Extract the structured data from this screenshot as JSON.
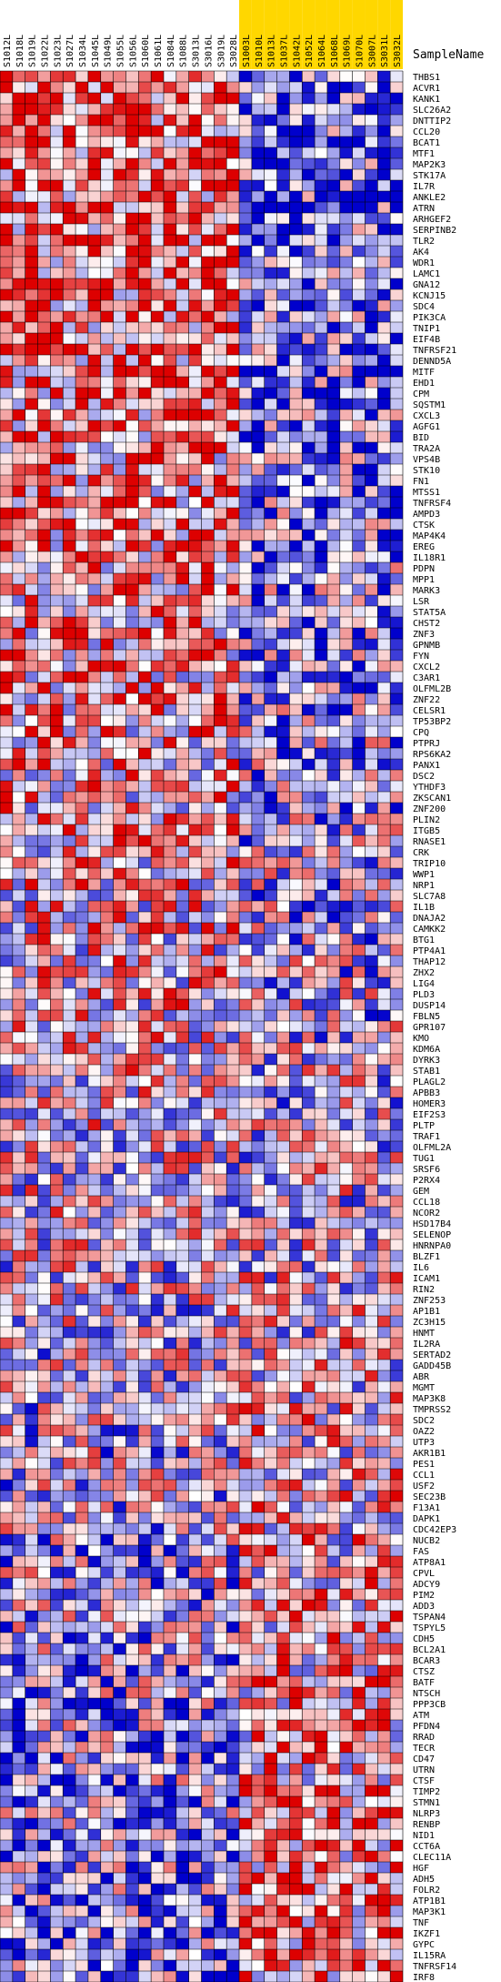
{
  "chart_data": {
    "type": "heatmap",
    "header_label": "SampleName",
    "columns": [
      "S1012L",
      "S1018L",
      "S1019L",
      "S1022L",
      "S1023L",
      "S1027L",
      "S1034L",
      "S1045L",
      "S1049L",
      "S1055L",
      "S1056L",
      "S1060L",
      "S1061L",
      "S1084L",
      "S1088L",
      "S3013L",
      "S3016L",
      "S3019L",
      "S3028L",
      "S1003L",
      "S1010L",
      "S1013L",
      "S1037L",
      "S1042L",
      "S1052L",
      "S1064L",
      "S1068L",
      "S1069L",
      "S1070L",
      "S3007L",
      "S3031L",
      "S3032L"
    ],
    "highlight_from_index": 19,
    "highlight_color": "#ffd700",
    "genes": [
      "THBS1",
      "ACVR1",
      "KANK1",
      "SLC26A2",
      "DNTTIP2",
      "CCL20",
      "BCAT1",
      "MTF1",
      "MAP2K3",
      "STK17A",
      "IL7R",
      "ANKLE2",
      "ATRN",
      "ARHGEF2",
      "SERPINB2",
      "TLR2",
      "AK4",
      "WDR1",
      "LAMC1",
      "GNA12",
      "KCNJ15",
      "SDC4",
      "PIK3CA",
      "TNIP1",
      "EIF4B",
      "TNFRSF21",
      "DENND5A",
      "MITF",
      "EHD1",
      "CPM",
      "SQSTM1",
      "CXCL3",
      "AGFG1",
      "BID",
      "TRA2A",
      "VPS4B",
      "STK10",
      "FN1",
      "MTSS1",
      "TNFRSF4",
      "AMPD3",
      "CTSK",
      "MAP4K4",
      "EREG",
      "IL18R1",
      "PDPN",
      "MPP1",
      "MARK3",
      "LSR",
      "STAT5A",
      "CHST2",
      "ZNF3",
      "GPNMB",
      "FYN",
      "CXCL2",
      "C3AR1",
      "OLFML2B",
      "ZNF22",
      "CELSR1",
      "TP53BP2",
      "CPQ",
      "PTPRJ",
      "RPS6KA2",
      "PANX1",
      "DSC2",
      "YTHDF3",
      "ZKSCAN1",
      "ZNF200",
      "PLIN2",
      "ITGB5",
      "RNASE1",
      "CRK",
      "TRIP10",
      "WWP1",
      "NRP1",
      "SLC7A8",
      "IL1B",
      "DNAJA2",
      "CAMKK2",
      "BTG1",
      "PTP4A1",
      "THAP12",
      "ZHX2",
      "LIG4",
      "PLD3",
      "DUSP14",
      "FBLN5",
      "GPR107",
      "KMO",
      "KDM6A",
      "DYRK3",
      "STAB1",
      "PLAGL2",
      "APBB3",
      "HOMER3",
      "EIF2S3",
      "PLTP",
      "TRAF1",
      "OLFML2A",
      "TUG1",
      "SRSF6",
      "P2RX4",
      "GEM",
      "CCL18",
      "NCOR2",
      "HSD17B4",
      "SELENOP",
      "HNRNPA0",
      "BLZF1",
      "IL6",
      "ICAM1",
      "RIN2",
      "ZNF253",
      "AP1B1",
      "ZC3H15",
      "HNMT",
      "IL2RA",
      "SERTAD2",
      "GADD45B",
      "ABR",
      "MGMT",
      "MAP3K8",
      "TMPRSS2",
      "SDC2",
      "OAZ2",
      "UTP3",
      "AKR1B1",
      "PES1",
      "CCL1",
      "USF2",
      "SEC23B",
      "F13A1",
      "DAPK1",
      "CDC42EP3",
      "NUCB2",
      "FAS",
      "ATP8A1",
      "CPVL",
      "ADCY9",
      "PIM2",
      "ADD3",
      "TSPAN4",
      "TSPYL5",
      "CDH5",
      "BCL2A1",
      "BCAR3",
      "CTSZ",
      "BATF",
      "NTSCH",
      "PPP3CB",
      "ATM",
      "PFDN4",
      "RRAD",
      "TECR",
      "CD47",
      "UTRN",
      "CTSF",
      "TIMP2",
      "STMN1",
      "NLRP3",
      "RENBP",
      "NID1",
      "CCT6A",
      "CLEC11A",
      "HGF",
      "ADH5",
      "FOLR2",
      "ATP1B1",
      "MAP3K1",
      "TNF",
      "IKZF1",
      "GYPC",
      "IL15RA",
      "TNFRSF14",
      "IRF8"
    ],
    "color_scale": {
      "low": "#0000cc",
      "mid_low": "#8a8ae6",
      "mid": "#ffffff",
      "mid_high": "#ff9999",
      "high": "#dd0000"
    },
    "value_range": [
      -1,
      1
    ],
    "values_note": ""
  }
}
